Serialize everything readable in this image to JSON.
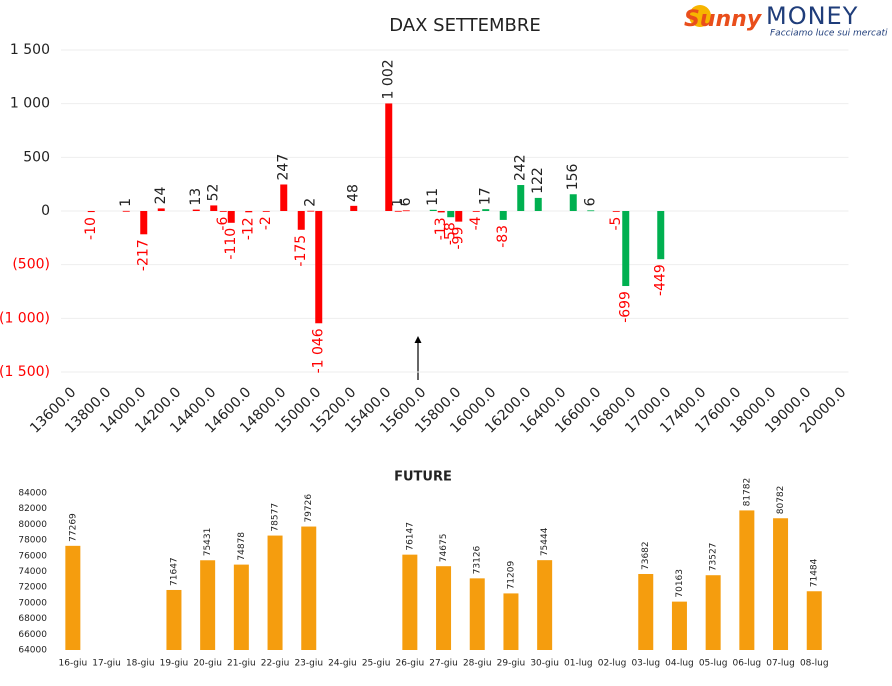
{
  "logo": {
    "brand_1": "Sunny",
    "brand_2": "MONEY",
    "tagline": "Facciamo luce sui mercati"
  },
  "chart_data": [
    {
      "type": "bar",
      "title": "DAX SETTEMBRE",
      "categories": [
        "13600.0",
        null,
        "13800.0",
        null,
        "14000.0",
        null,
        "14200.0",
        null,
        "14400.0",
        null,
        "14600.0",
        null,
        "14800.0",
        null,
        "15000.0",
        null,
        "15200.0",
        null,
        "15400.0",
        null,
        "15600.0",
        null,
        "15800.0",
        null,
        "16000.0",
        null,
        "16200.0",
        null,
        "16400.0",
        null,
        "16600.0",
        null,
        "16800.0",
        null,
        "17000.0",
        null,
        "17400.0",
        null,
        "17600.0",
        null,
        "18000.0",
        null,
        "19000.0",
        null,
        "20000.0"
      ],
      "series": [
        {
          "values": [
            null,
            null,
            null,
            null,
            null,
            null,
            null,
            null,
            null,
            -6,
            null,
            null,
            null,
            null,
            2,
            null,
            null,
            null,
            null,
            1,
            null,
            11,
            -58,
            null,
            17,
            -83,
            242,
            122,
            null,
            156,
            6,
            null,
            -699,
            null,
            -449,
            null,
            null,
            null,
            null,
            null,
            null,
            null,
            null,
            null,
            null
          ],
          "colors": [
            null,
            null,
            null,
            null,
            null,
            null,
            null,
            null,
            null,
            "#ff0000",
            null,
            null,
            null,
            null,
            "#ff0000",
            null,
            null,
            null,
            null,
            "#ff0000",
            null,
            "#00b050",
            "#00b050",
            null,
            "#00b050",
            "#00b050",
            "#00b050",
            "#00b050",
            null,
            "#00b050",
            "#00b050",
            null,
            "#00b050",
            null,
            "#00b050",
            null,
            null,
            null,
            null,
            null,
            null,
            null,
            null,
            null,
            null
          ]
        },
        {
          "values": [
            null,
            -10,
            null,
            1,
            -217,
            24,
            null,
            13,
            52,
            -110,
            -12,
            -2,
            247,
            -175,
            -1046,
            null,
            48,
            null,
            1002,
            6,
            null,
            -13,
            -99,
            -4,
            null,
            null,
            null,
            null,
            null,
            null,
            null,
            -5,
            null,
            null,
            null,
            null,
            null,
            null,
            null,
            null,
            null,
            null,
            null,
            null,
            null
          ],
          "value_labels": [
            null,
            null,
            null,
            null,
            null,
            null,
            null,
            null,
            null,
            null,
            null,
            null,
            null,
            null,
            "-1 046",
            null,
            null,
            null,
            "1 002",
            null,
            null,
            null,
            null,
            null,
            null,
            null,
            null,
            null,
            null,
            null,
            null,
            null,
            null,
            null,
            null,
            null,
            null,
            null,
            null,
            null,
            null,
            null,
            null,
            null,
            null
          ],
          "color": "#ff0000"
        }
      ],
      "ylim": [
        -1500,
        1500
      ],
      "yticks": [
        {
          "value": 1500,
          "label": "1 500"
        },
        {
          "value": 1000,
          "label": "1 000"
        },
        500,
        0,
        {
          "value": -500,
          "label": "(500)"
        },
        {
          "value": -1000,
          "label": "(1 000)"
        },
        {
          "value": -1500,
          "label": "(1 500)"
        }
      ],
      "grid": true
    },
    {
      "type": "bar",
      "title": "FUTURE",
      "categories": [
        "16-giu",
        "17-giu",
        "18-giu",
        "19-giu",
        "20-giu",
        "21-giu",
        "22-giu",
        "23-giu",
        "24-giu",
        "25-giu",
        "26-giu",
        "27-giu",
        "28-giu",
        "29-giu",
        "30-giu",
        "01-lug",
        "02-lug",
        "03-lug",
        "04-lug",
        "05-lug",
        "06-lug",
        "07-lug",
        "08-lug"
      ],
      "series": [
        {
          "values": [
            77269,
            null,
            null,
            71647,
            75431,
            74878,
            78577,
            79726,
            null,
            null,
            76147,
            74675,
            73126,
            71209,
            75444,
            null,
            null,
            73682,
            70163,
            73527,
            81782,
            80782,
            71484
          ],
          "color": "#f59d0e"
        }
      ],
      "ylim": [
        64000,
        84000
      ],
      "yticks": [
        84000,
        82000,
        80000,
        78000,
        76000,
        74000,
        72000,
        70000,
        68000,
        66000,
        64000
      ],
      "grid": false
    }
  ]
}
